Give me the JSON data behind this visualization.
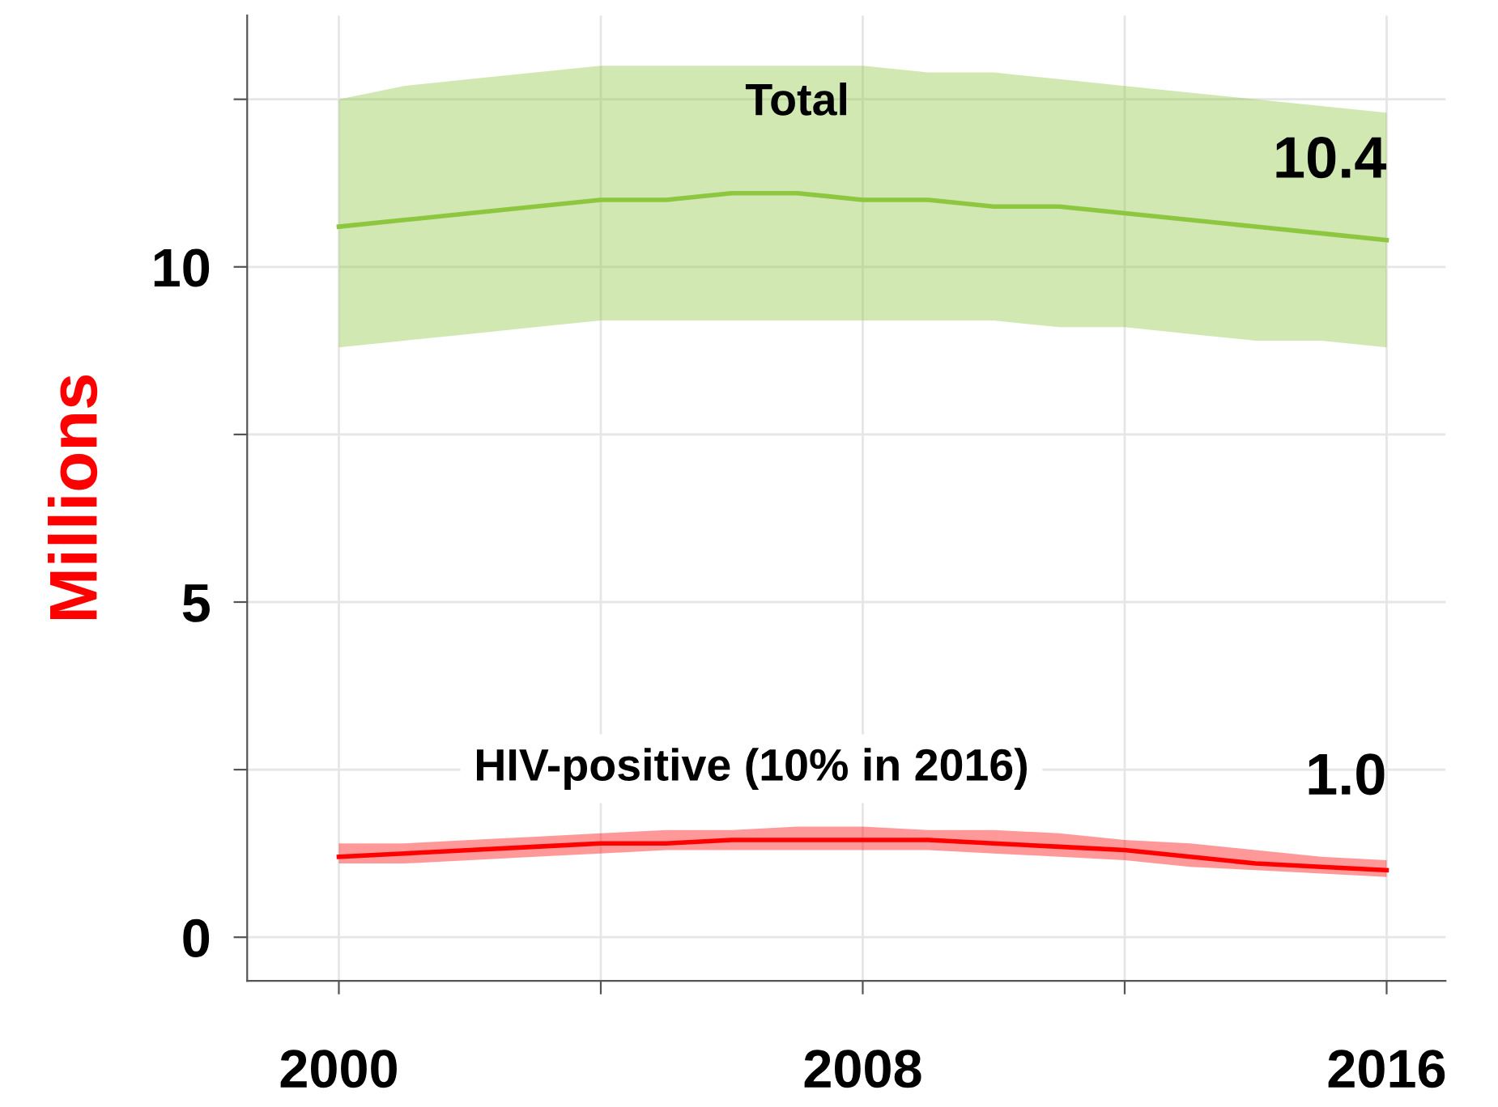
{
  "chart_data": {
    "type": "line",
    "ylabel": "Millions",
    "x": [
      2000,
      2001,
      2002,
      2003,
      2004,
      2005,
      2006,
      2007,
      2008,
      2009,
      2010,
      2011,
      2012,
      2013,
      2014,
      2015,
      2016
    ],
    "series": [
      {
        "name": "Total",
        "color": "#8dc63f",
        "values": [
          10.6,
          10.7,
          10.8,
          10.9,
          11.0,
          11.0,
          11.1,
          11.1,
          11.0,
          11.0,
          10.9,
          10.9,
          10.8,
          10.7,
          10.6,
          10.5,
          10.4
        ],
        "lower": [
          8.8,
          8.9,
          9.0,
          9.1,
          9.2,
          9.2,
          9.2,
          9.2,
          9.2,
          9.2,
          9.2,
          9.1,
          9.1,
          9.0,
          8.9,
          8.9,
          8.8
        ],
        "upper": [
          12.5,
          12.7,
          12.8,
          12.9,
          13.0,
          13.0,
          13.0,
          13.0,
          13.0,
          12.9,
          12.9,
          12.8,
          12.7,
          12.6,
          12.5,
          12.4,
          12.3
        ],
        "value_labels": [
          null,
          null,
          null,
          null,
          null,
          null,
          null,
          null,
          null,
          null,
          null,
          null,
          null,
          null,
          null,
          null,
          "10.4"
        ]
      },
      {
        "name": "HIV-positive (10% in 2016)",
        "color": "#ff0000",
        "values": [
          1.2,
          1.25,
          1.3,
          1.35,
          1.4,
          1.4,
          1.45,
          1.45,
          1.45,
          1.45,
          1.4,
          1.35,
          1.3,
          1.2,
          1.1,
          1.05,
          1.0
        ],
        "lower": [
          1.1,
          1.1,
          1.15,
          1.2,
          1.25,
          1.3,
          1.3,
          1.3,
          1.3,
          1.3,
          1.25,
          1.2,
          1.15,
          1.05,
          1.0,
          0.95,
          0.9
        ],
        "upper": [
          1.4,
          1.4,
          1.45,
          1.5,
          1.55,
          1.6,
          1.6,
          1.65,
          1.65,
          1.6,
          1.6,
          1.55,
          1.45,
          1.4,
          1.3,
          1.2,
          1.15
        ],
        "value_labels": [
          null,
          null,
          null,
          null,
          null,
          null,
          null,
          null,
          null,
          null,
          null,
          null,
          null,
          null,
          null,
          null,
          "1.0"
        ]
      }
    ],
    "xlim": [
      1998.6,
      2016.9
    ],
    "ylim": [
      -0.65,
      13.75
    ],
    "xticks": [
      2000,
      {
        "value": 2004,
        "label": null
      },
      2008,
      {
        "value": 2012,
        "label": null
      },
      2016
    ],
    "yticks": [
      0,
      {
        "value": 2.5,
        "label": null
      },
      5,
      {
        "value": 7.5,
        "label": null
      },
      10,
      {
        "value": 12.5,
        "label": null
      }
    ],
    "grid": true,
    "legend": false,
    "marker": "none",
    "line_style": "solid"
  }
}
